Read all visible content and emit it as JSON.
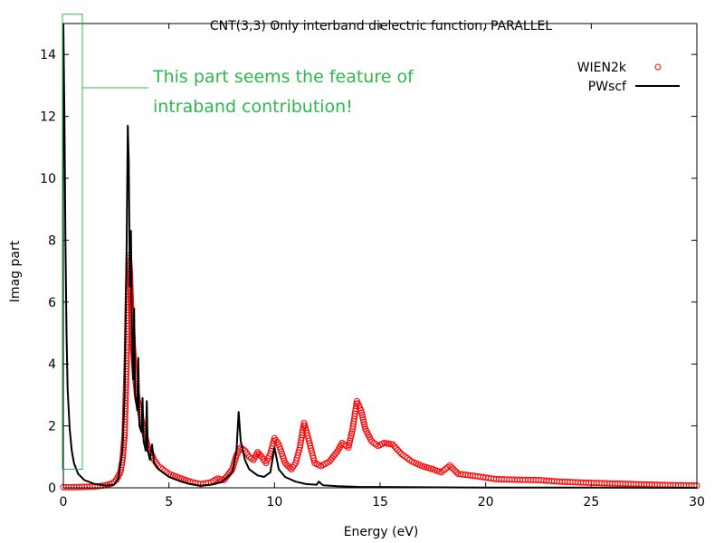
{
  "chart_data": {
    "type": "line",
    "title": "CNT(3,3) Only interband dielectric function, PARALLEL",
    "xlabel": "Energy (eV)",
    "ylabel": "Imag part",
    "xlim": [
      0,
      30
    ],
    "ylim": [
      0,
      15
    ],
    "x_ticks": [
      "0",
      "5",
      "10",
      "15",
      "20",
      "25",
      "30"
    ],
    "y_ticks": [
      "0",
      "2",
      "4",
      "6",
      "8",
      "10",
      "12",
      "14"
    ],
    "grid": false,
    "legend_position": "top-right",
    "series": [
      {
        "name": "WIEN2k",
        "style": "points",
        "marker": "open-circle",
        "color": "#ff0000",
        "points": [
          [
            0,
            0.02
          ],
          [
            0.5,
            0.02
          ],
          [
            1,
            0.03
          ],
          [
            1.5,
            0.04
          ],
          [
            2,
            0.08
          ],
          [
            2.3,
            0.14
          ],
          [
            2.5,
            0.25
          ],
          [
            2.7,
            0.5
          ],
          [
            2.8,
            0.9
          ],
          [
            2.9,
            1.7
          ],
          [
            3.0,
            4.1
          ],
          [
            3.05,
            6.0
          ],
          [
            3.1,
            7.5
          ],
          [
            3.15,
            7.0
          ],
          [
            3.2,
            6.0
          ],
          [
            3.3,
            4.5
          ],
          [
            3.4,
            3.6
          ],
          [
            3.5,
            2.9
          ],
          [
            3.6,
            2.6
          ],
          [
            3.7,
            2.2
          ],
          [
            3.8,
            1.9
          ],
          [
            3.9,
            1.6
          ],
          [
            4.0,
            1.3
          ],
          [
            4.1,
            1.2
          ],
          [
            4.3,
            0.9
          ],
          [
            4.5,
            0.7
          ],
          [
            5.0,
            0.45
          ],
          [
            5.5,
            0.32
          ],
          [
            6.0,
            0.2
          ],
          [
            6.5,
            0.12
          ],
          [
            7.0,
            0.18
          ],
          [
            7.3,
            0.3
          ],
          [
            7.6,
            0.25
          ],
          [
            8.0,
            0.6
          ],
          [
            8.2,
            1.05
          ],
          [
            8.4,
            1.3
          ],
          [
            8.6,
            1.2
          ],
          [
            8.8,
            1.0
          ],
          [
            9.0,
            0.9
          ],
          [
            9.2,
            1.15
          ],
          [
            9.4,
            1.0
          ],
          [
            9.6,
            0.8
          ],
          [
            9.8,
            1.1
          ],
          [
            10.0,
            1.6
          ],
          [
            10.2,
            1.4
          ],
          [
            10.5,
            0.8
          ],
          [
            10.8,
            0.6
          ],
          [
            11.0,
            0.8
          ],
          [
            11.2,
            1.3
          ],
          [
            11.4,
            2.1
          ],
          [
            11.6,
            1.6
          ],
          [
            11.9,
            0.8
          ],
          [
            12.2,
            0.7
          ],
          [
            12.6,
            0.85
          ],
          [
            13.0,
            1.2
          ],
          [
            13.2,
            1.45
          ],
          [
            13.5,
            1.3
          ],
          [
            13.7,
            1.9
          ],
          [
            13.9,
            2.8
          ],
          [
            14.1,
            2.5
          ],
          [
            14.3,
            1.9
          ],
          [
            14.6,
            1.5
          ],
          [
            14.9,
            1.35
          ],
          [
            15.2,
            1.45
          ],
          [
            15.6,
            1.4
          ],
          [
            16.0,
            1.1
          ],
          [
            16.5,
            0.85
          ],
          [
            17.0,
            0.7
          ],
          [
            17.5,
            0.6
          ],
          [
            17.9,
            0.5
          ],
          [
            18.3,
            0.72
          ],
          [
            18.7,
            0.45
          ],
          [
            19.5,
            0.38
          ],
          [
            20.5,
            0.28
          ],
          [
            21.5,
            0.26
          ],
          [
            22.5,
            0.25
          ],
          [
            23.5,
            0.2
          ],
          [
            24.5,
            0.17
          ],
          [
            25.5,
            0.15
          ],
          [
            26.5,
            0.13
          ],
          [
            27.5,
            0.11
          ],
          [
            28.5,
            0.09
          ],
          [
            29.5,
            0.08
          ],
          [
            30,
            0.07
          ]
        ]
      },
      {
        "name": "PWscf",
        "style": "line",
        "color": "#000000",
        "points": [
          [
            0,
            15.0
          ],
          [
            0.05,
            12.0
          ],
          [
            0.1,
            8.0
          ],
          [
            0.15,
            5.0
          ],
          [
            0.2,
            3.2
          ],
          [
            0.3,
            1.9
          ],
          [
            0.4,
            1.2
          ],
          [
            0.5,
            0.8
          ],
          [
            0.7,
            0.45
          ],
          [
            1.0,
            0.25
          ],
          [
            1.5,
            0.12
          ],
          [
            2.0,
            0.07
          ],
          [
            2.4,
            0.1
          ],
          [
            2.6,
            0.3
          ],
          [
            2.8,
            1.2
          ],
          [
            2.9,
            3.0
          ],
          [
            3.0,
            8.0
          ],
          [
            3.05,
            11.7
          ],
          [
            3.1,
            10.5
          ],
          [
            3.15,
            6.5
          ],
          [
            3.2,
            8.3
          ],
          [
            3.25,
            5.0
          ],
          [
            3.3,
            3.5
          ],
          [
            3.35,
            5.8
          ],
          [
            3.4,
            3.0
          ],
          [
            3.5,
            2.5
          ],
          [
            3.55,
            4.2
          ],
          [
            3.6,
            2.0
          ],
          [
            3.7,
            1.8
          ],
          [
            3.75,
            2.9
          ],
          [
            3.8,
            1.5
          ],
          [
            3.9,
            1.2
          ],
          [
            3.95,
            2.8
          ],
          [
            4.0,
            1.2
          ],
          [
            4.1,
            0.9
          ],
          [
            4.2,
            1.4
          ],
          [
            4.3,
            0.8
          ],
          [
            4.5,
            0.6
          ],
          [
            5.0,
            0.35
          ],
          [
            5.5,
            0.22
          ],
          [
            6.0,
            0.12
          ],
          [
            6.5,
            0.07
          ],
          [
            7.0,
            0.1
          ],
          [
            7.5,
            0.18
          ],
          [
            8.0,
            0.5
          ],
          [
            8.2,
            1.2
          ],
          [
            8.3,
            2.45
          ],
          [
            8.4,
            1.5
          ],
          [
            8.6,
            0.9
          ],
          [
            8.8,
            0.6
          ],
          [
            9.0,
            0.5
          ],
          [
            9.2,
            0.4
          ],
          [
            9.5,
            0.35
          ],
          [
            9.8,
            0.5
          ],
          [
            10.0,
            1.3
          ],
          [
            10.2,
            0.6
          ],
          [
            10.5,
            0.35
          ],
          [
            11.0,
            0.2
          ],
          [
            11.5,
            0.12
          ],
          [
            12.0,
            0.1
          ],
          [
            12.1,
            0.2
          ],
          [
            12.3,
            0.08
          ],
          [
            13.0,
            0.05
          ],
          [
            13.5,
            0.04
          ],
          [
            14.0,
            0.03
          ],
          [
            16.0,
            0.02
          ],
          [
            20.0,
            0.01
          ],
          [
            25.0,
            0.01
          ],
          [
            30.0,
            0.0
          ]
        ]
      }
    ],
    "annotation": {
      "line1": "This part seems the feature of",
      "line2": "intraband contribution!",
      "color": "#2db84c",
      "highlight_range_x": [
        0,
        0.9
      ],
      "highlight_range_y": [
        0.6,
        15.3
      ]
    }
  }
}
